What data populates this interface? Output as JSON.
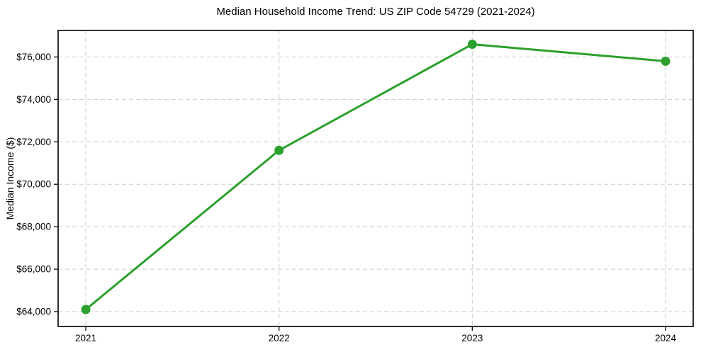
{
  "chart_data": {
    "type": "line",
    "title": "Median Household Income Trend: US ZIP Code 54729 (2021-2024)",
    "xlabel": "",
    "ylabel": "Median Income ($)",
    "x": [
      "2021",
      "2022",
      "2023",
      "2024"
    ],
    "series": [
      {
        "name": "Median Household Income",
        "values": [
          64100,
          71600,
          76600,
          75800
        ],
        "color": "#2ca02c",
        "marker": "circle"
      }
    ],
    "ylim": [
      63300,
      77250
    ],
    "yticks": [
      64000,
      66000,
      68000,
      70000,
      72000,
      74000,
      76000
    ],
    "ytick_prefix": "$",
    "grid": true,
    "grid_style": "dashed",
    "legend_position": "none",
    "colors": {
      "line": "#2ca02c",
      "grid": "#cccccc",
      "axis": "#1a1a1a",
      "text": "#000000",
      "background": "#ffffff"
    }
  }
}
